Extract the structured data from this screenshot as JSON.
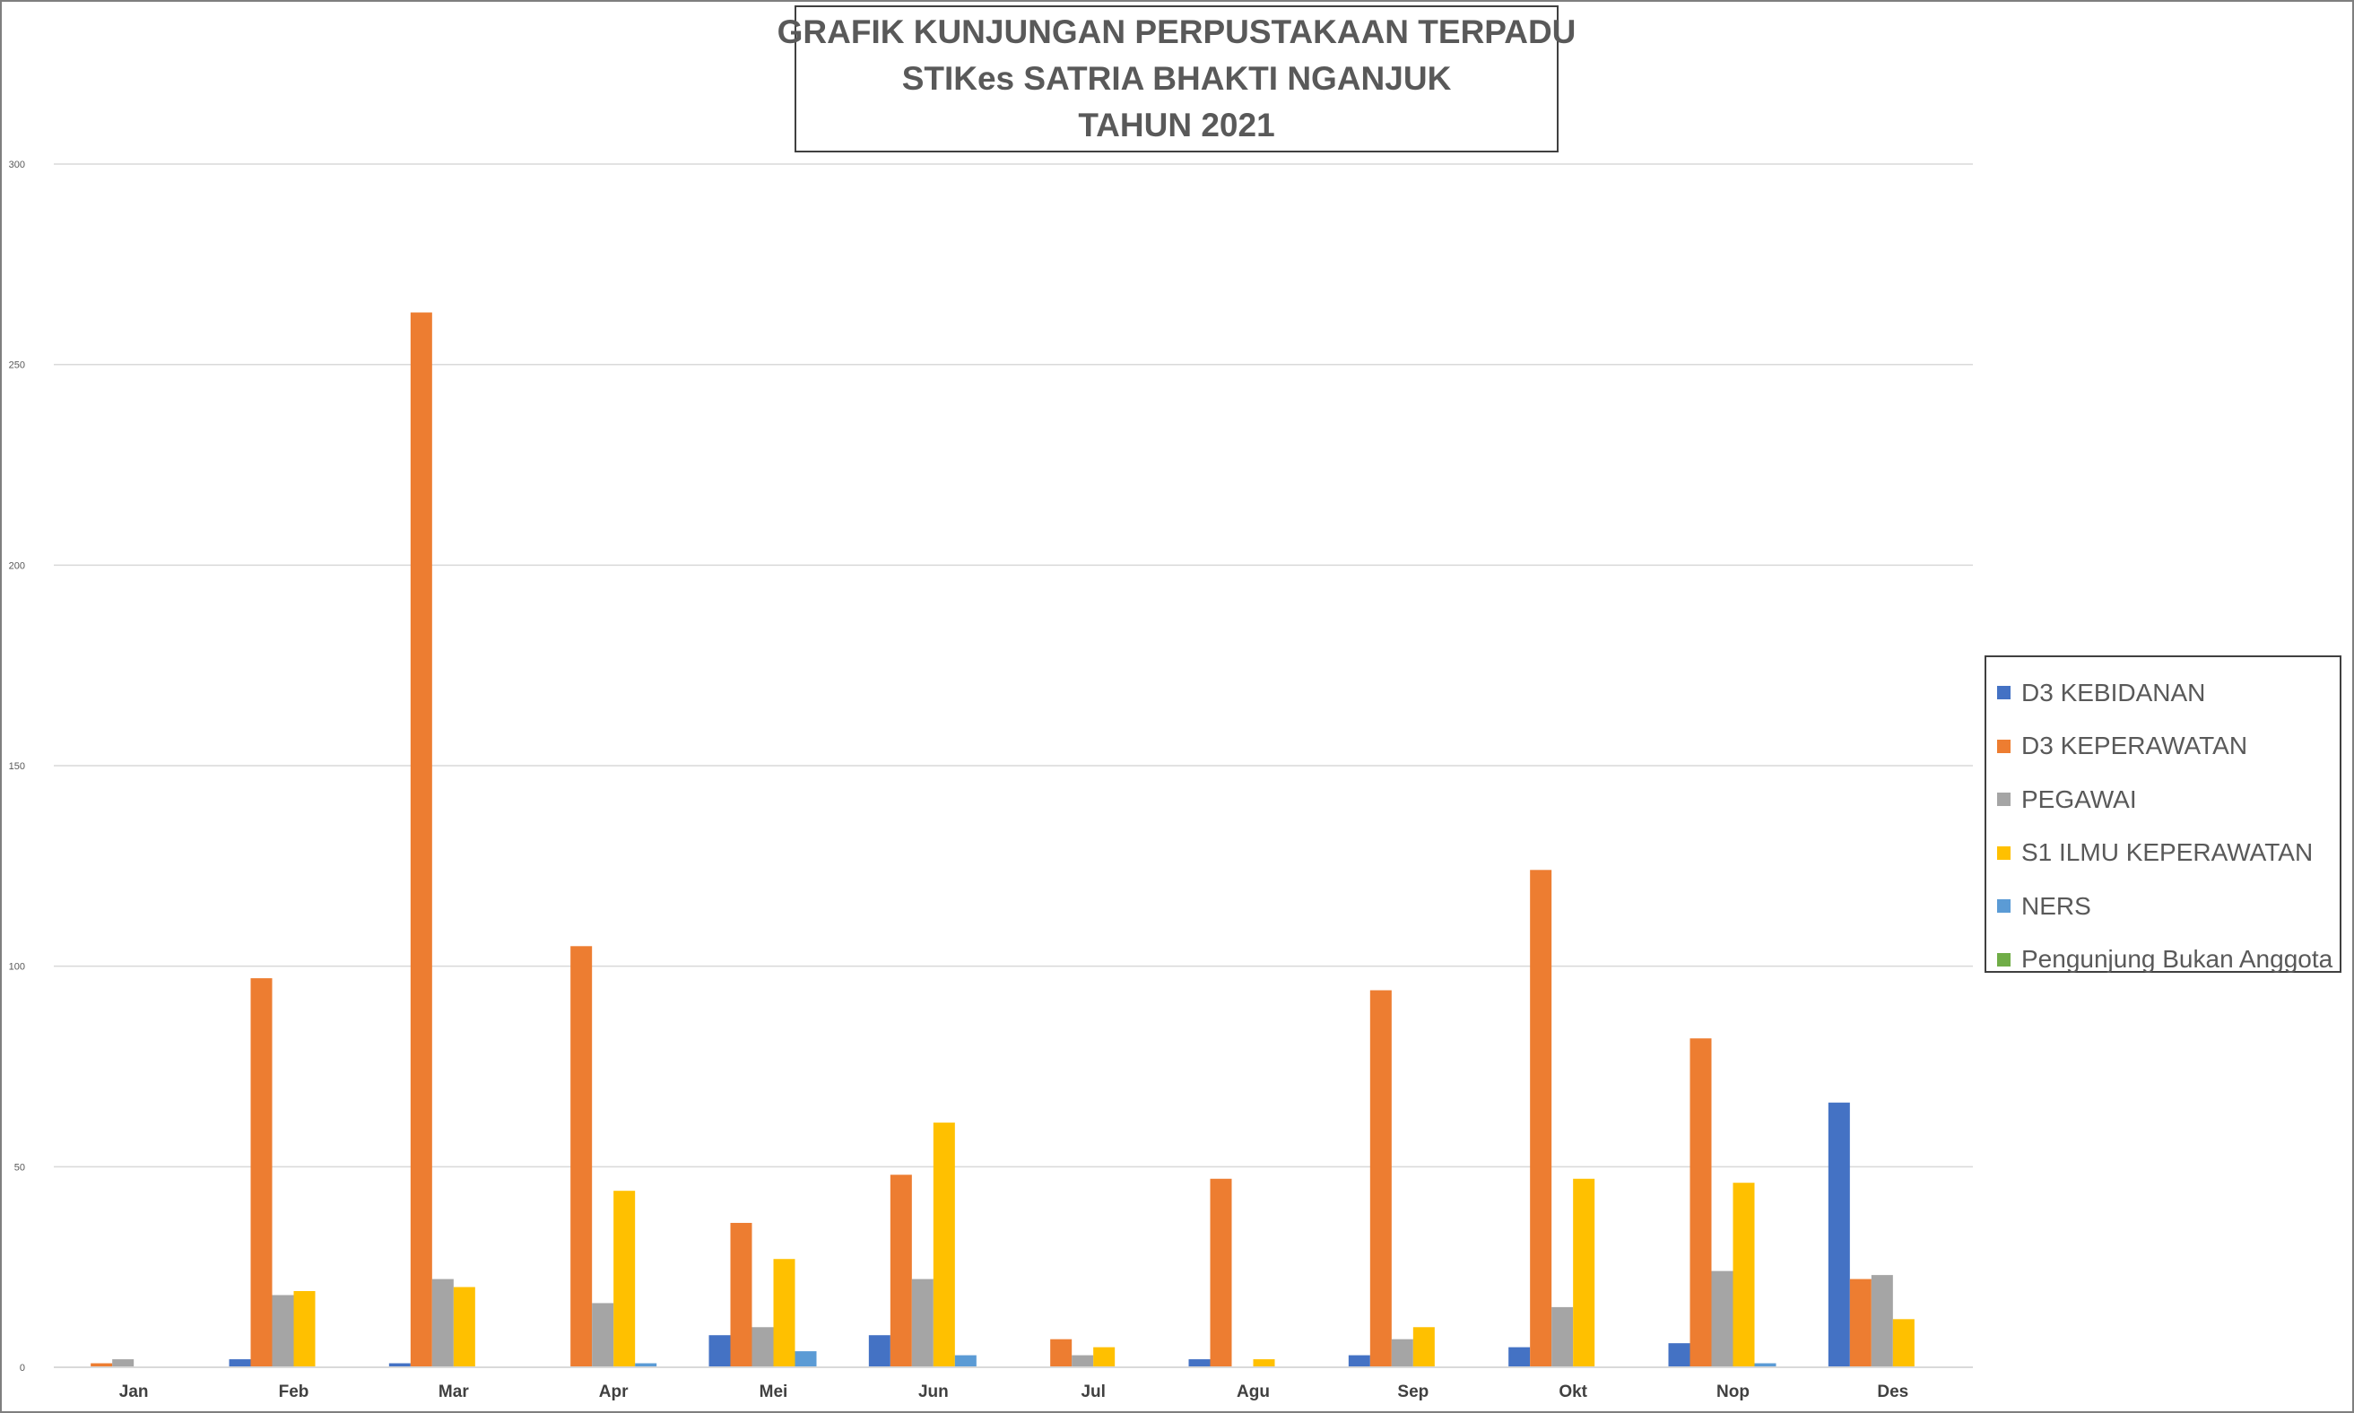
{
  "chart_data": {
    "type": "bar",
    "title_lines": [
      "GRAFIK KUNJUNGAN PERPUSTAKAAN TERPADU",
      "STIKes SATRIA BHAKTI NGANJUK",
      "TAHUN 2021"
    ],
    "categories": [
      "Jan",
      "Feb",
      "Mar",
      "Apr",
      "Mei",
      "Jun",
      "Jul",
      "Agu",
      "Sep",
      "Okt",
      "Nop",
      "Des"
    ],
    "series": [
      {
        "name": "D3 KEBIDANAN",
        "color": "#4472c4",
        "values": [
          0,
          2,
          1,
          0,
          8,
          8,
          0,
          2,
          3,
          5,
          6,
          66
        ]
      },
      {
        "name": "D3 KEPERAWATAN",
        "color": "#ed7d31",
        "values": [
          1,
          97,
          263,
          105,
          36,
          48,
          7,
          47,
          94,
          124,
          82,
          22
        ]
      },
      {
        "name": "PEGAWAI",
        "color": "#a5a5a5",
        "values": [
          2,
          18,
          22,
          16,
          10,
          22,
          3,
          0,
          7,
          15,
          24,
          23
        ]
      },
      {
        "name": "S1 ILMU KEPERAWATAN",
        "color": "#ffc000",
        "values": [
          0,
          19,
          20,
          44,
          27,
          61,
          5,
          2,
          10,
          47,
          46,
          12
        ]
      },
      {
        "name": "NERS",
        "color": "#5b9bd5",
        "values": [
          0,
          0,
          0,
          1,
          4,
          3,
          0,
          0,
          0,
          0,
          1,
          0
        ]
      },
      {
        "name": "Pengunjung Bukan Anggota",
        "color": "#70ad47",
        "values": [
          0,
          0,
          0,
          0,
          0,
          0,
          0,
          0,
          0,
          0,
          0,
          0
        ]
      }
    ],
    "yticks": [
      "0",
      "50",
      "100",
      "150",
      "200",
      "250",
      "300"
    ],
    "ylim": [
      0,
      300
    ],
    "grid": true,
    "legend_position": "right"
  }
}
